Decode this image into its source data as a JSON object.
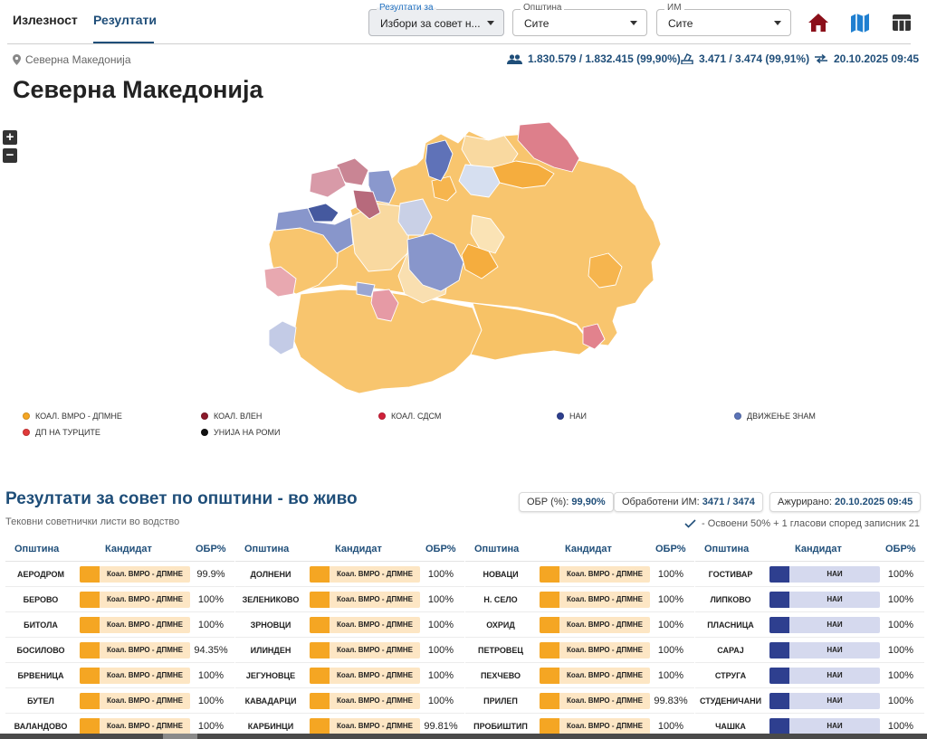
{
  "tabs": [
    {
      "label": "Излезност",
      "active": false
    },
    {
      "label": "Резултати",
      "active": true
    }
  ],
  "selectors": {
    "results_for": {
      "label": "Резултати за",
      "value": "Избори за совет н..."
    },
    "municipality": {
      "label": "Општина",
      "value": "Сите"
    },
    "polling_station": {
      "label": "ИМ",
      "value": "Сите"
    }
  },
  "toolbar_icons": [
    "home-icon",
    "map-icon",
    "table-icon"
  ],
  "location": "Северна Македонија",
  "stats": {
    "voters": "1.830.579 / 1.832.415 (99,90%)",
    "stations": "3.471 / 3.474 (99,91%)",
    "updated": "20.10.2025 09:45"
  },
  "page_title": "Северна Македонија",
  "zoom": {
    "in": "+",
    "out": "−"
  },
  "legend": [
    {
      "label": "КОАЛ. ВМРО - ДПМНЕ",
      "color": "#f5a623"
    },
    {
      "label": "КОАЛ. ВЛЕН",
      "color": "#8b1a2b"
    },
    {
      "label": "КОАЛ. СДСМ",
      "color": "#d0203a"
    },
    {
      "label": "НАИ",
      "color": "#2e3f8f"
    },
    {
      "label": "ДВИЖЕЊЕ ЗНАМ",
      "color": "#5b74b8"
    },
    {
      "label": "ДП НА ТУРЦИТЕ",
      "color": "#e03a3a"
    },
    {
      "label": "УНИЈА НА РОМИ",
      "color": "#111111"
    }
  ],
  "section": {
    "title": "Резултати за совет по општини - во живо",
    "subtitle": "Тековни советнички листи во водство",
    "chip_turnout_label": "ОБР (%):",
    "chip_turnout_value": "99,90%",
    "chip_processed_label": "Обработени ИМ:",
    "chip_processed_value": "3471 / 3474",
    "chip_updated_label": "Ажурирано:",
    "chip_updated_value": "20.10.2025 09:45",
    "note": "- Освоени 50% + 1 гласови според записник 21"
  },
  "table": {
    "headers": {
      "municipality": "Општина",
      "candidate": "Кандидат",
      "pct": "ОБР%"
    },
    "columns": [
      [
        {
          "muni": "АЕРОДРОМ",
          "cand": "Коал. ВМРО - ДПМНЕ",
          "color": "#f5a623",
          "pct": "99.9%"
        },
        {
          "muni": "БЕРОВО",
          "cand": "Коал. ВМРО - ДПМНЕ",
          "color": "#f5a623",
          "pct": "100%"
        },
        {
          "muni": "БИТОЛА",
          "cand": "Коал. ВМРО - ДПМНЕ",
          "color": "#f5a623",
          "pct": "100%"
        },
        {
          "muni": "БОСИЛОВО",
          "cand": "Коал. ВМРО - ДПМНЕ",
          "color": "#f5a623",
          "pct": "94.35%"
        },
        {
          "muni": "БРВЕНИЦА",
          "cand": "Коал. ВМРО - ДПМНЕ",
          "color": "#f5a623",
          "pct": "100%"
        },
        {
          "muni": "БУТЕЛ",
          "cand": "Коал. ВМРО - ДПМНЕ",
          "color": "#f5a623",
          "pct": "100%"
        },
        {
          "muni": "ВАЛАНДОВО",
          "cand": "Коал. ВМРО - ДПМНЕ",
          "color": "#f5a623",
          "pct": "100%"
        }
      ],
      [
        {
          "muni": "ДОЛНЕНИ",
          "cand": "Коал. ВМРО - ДПМНЕ",
          "color": "#f5a623",
          "pct": "100%"
        },
        {
          "muni": "ЗЕЛЕНИКОВО",
          "cand": "Коал. ВМРО - ДПМНЕ",
          "color": "#f5a623",
          "pct": "100%"
        },
        {
          "muni": "ЗРНОВЦИ",
          "cand": "Коал. ВМРО - ДПМНЕ",
          "color": "#f5a623",
          "pct": "100%"
        },
        {
          "muni": "ИЛИНДЕН",
          "cand": "Коал. ВМРО - ДПМНЕ",
          "color": "#f5a623",
          "pct": "100%"
        },
        {
          "muni": "ЈЕГУНОВЦЕ",
          "cand": "Коал. ВМРО - ДПМНЕ",
          "color": "#f5a623",
          "pct": "100%"
        },
        {
          "muni": "КАВАДАРЦИ",
          "cand": "Коал. ВМРО - ДПМНЕ",
          "color": "#f5a623",
          "pct": "100%"
        },
        {
          "muni": "КАРБИНЦИ",
          "cand": "Коал. ВМРО - ДПМНЕ",
          "color": "#f5a623",
          "pct": "99.81%"
        }
      ],
      [
        {
          "muni": "НОВАЦИ",
          "cand": "Коал. ВМРО - ДПМНЕ",
          "color": "#f5a623",
          "pct": "100%"
        },
        {
          "muni": "Н. СЕЛО",
          "cand": "Коал. ВМРО - ДПМНЕ",
          "color": "#f5a623",
          "pct": "100%"
        },
        {
          "muni": "ОХРИД",
          "cand": "Коал. ВМРО - ДПМНЕ",
          "color": "#f5a623",
          "pct": "100%"
        },
        {
          "muni": "ПЕТРОВЕЦ",
          "cand": "Коал. ВМРО - ДПМНЕ",
          "color": "#f5a623",
          "pct": "100%"
        },
        {
          "muni": "ПЕХЧЕВО",
          "cand": "Коал. ВМРО - ДПМНЕ",
          "color": "#f5a623",
          "pct": "100%"
        },
        {
          "muni": "ПРИЛЕП",
          "cand": "Коал. ВМРО - ДПМНЕ",
          "color": "#f5a623",
          "pct": "99.83%"
        },
        {
          "muni": "ПРОБИШТИП",
          "cand": "Коал. ВМРО - ДПМНЕ",
          "color": "#f5a623",
          "pct": "100%"
        }
      ],
      [
        {
          "muni": "ГОСТИВАР",
          "cand": "НАИ",
          "color": "#2e3f8f",
          "pct": "100%"
        },
        {
          "muni": "ЛИПКОВО",
          "cand": "НАИ",
          "color": "#2e3f8f",
          "pct": "100%"
        },
        {
          "muni": "ПЛАСНИЦА",
          "cand": "НАИ",
          "color": "#2e3f8f",
          "pct": "100%"
        },
        {
          "muni": "САРАЈ",
          "cand": "НАИ",
          "color": "#2e3f8f",
          "pct": "100%"
        },
        {
          "muni": "СТРУГА",
          "cand": "НАИ",
          "color": "#2e3f8f",
          "pct": "100%"
        },
        {
          "muni": "СТУДЕНИЧАНИ",
          "cand": "НАИ",
          "color": "#2e3f8f",
          "pct": "100%"
        },
        {
          "muni": "ЧАШКА",
          "cand": "НАИ",
          "color": "#2e3f8f",
          "pct": "100%"
        }
      ]
    ]
  }
}
